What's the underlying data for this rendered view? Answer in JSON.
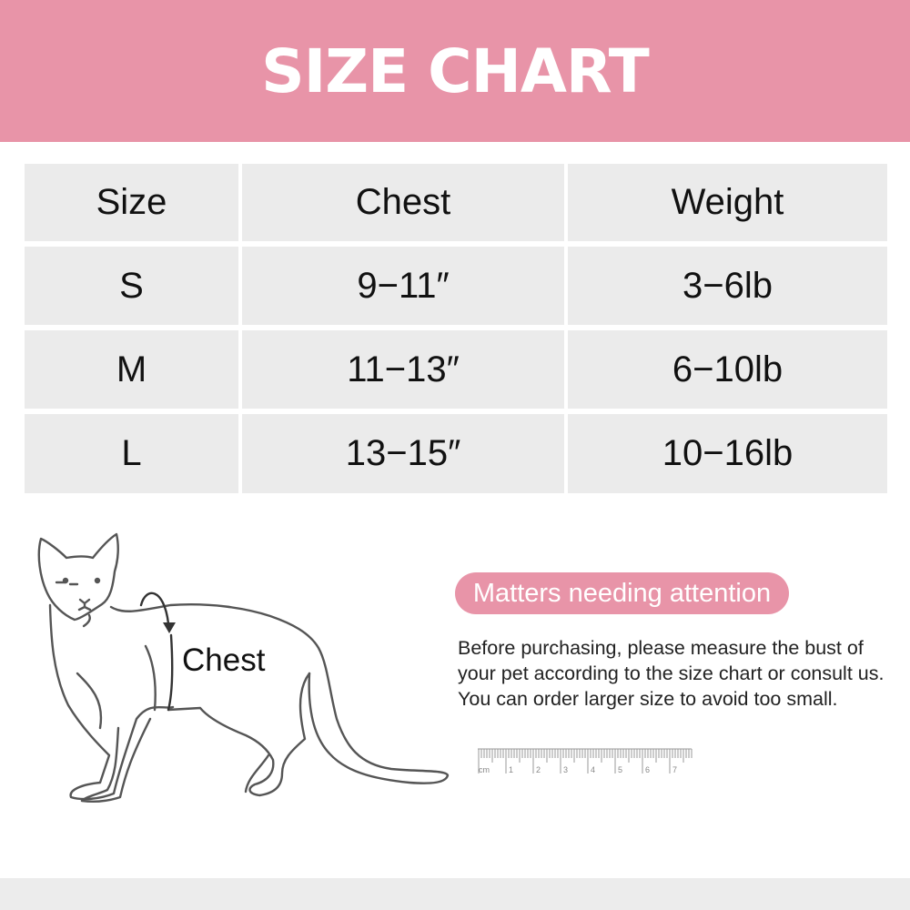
{
  "title": "SIZE CHART",
  "table": {
    "headers": [
      "Size",
      "Chest",
      "Weight"
    ],
    "rows": [
      [
        "S",
        "9−11″",
        "3−6lb"
      ],
      [
        "M",
        "11−13″",
        "6−10lb"
      ],
      [
        "L",
        "13−15″",
        "10−16lb"
      ]
    ]
  },
  "illustration": {
    "chest_label": "Chest",
    "icon": "cat-outline-icon"
  },
  "attention": {
    "title": "Matters needing attention",
    "text": "Before purchasing, please measure the bust of your pet according to the size chart or consult us. You can order larger size to avoid too small."
  },
  "ruler": {
    "unit": "cm",
    "marks": [
      "1",
      "2",
      "3",
      "4",
      "5",
      "6",
      "7"
    ]
  },
  "colors": {
    "accent": "#e894a8",
    "cell_bg": "#ebebeb"
  }
}
